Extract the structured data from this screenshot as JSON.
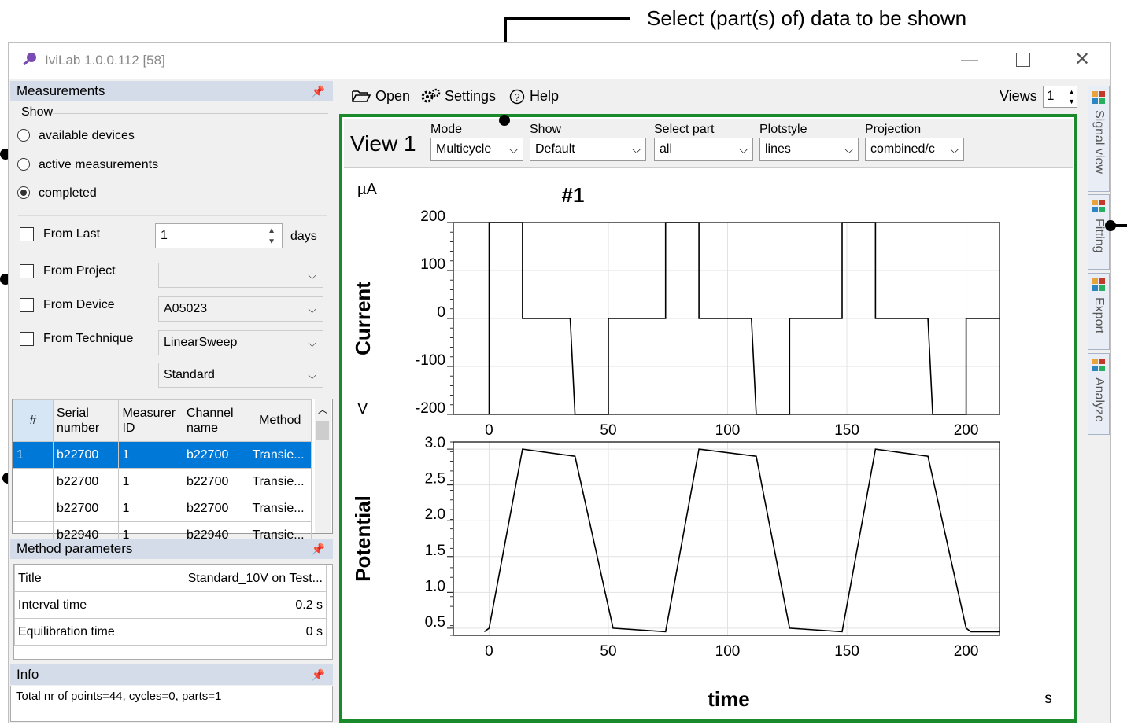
{
  "annotation": {
    "top_text": "Select (part(s) of)  data to be shown"
  },
  "window": {
    "title": "IviLab 1.0.0.112 [58]"
  },
  "measurements": {
    "header": "Measurements",
    "show_label": "Show",
    "radios": [
      {
        "label": "available devices",
        "checked": false
      },
      {
        "label": "active measurements",
        "checked": false
      },
      {
        "label": "completed",
        "checked": true
      }
    ],
    "filters": {
      "from_last_label": "From Last",
      "from_last_value": "1",
      "days_label": "days",
      "from_project_label": "From Project",
      "from_project_value": "",
      "from_device_label": "From Device",
      "from_device_value": "A05023",
      "from_technique_label": "From Technique",
      "from_technique_value": "LinearSweep",
      "technique_variant": "Standard"
    },
    "table": {
      "columns": [
        "#",
        "Serial number",
        "Measurer ID",
        "Channel name",
        "Method"
      ],
      "rows": [
        [
          "1",
          "b22700",
          "1",
          "b22700",
          "Transie..."
        ],
        [
          "",
          "b22700",
          "1",
          "b22700",
          "Transie..."
        ],
        [
          "",
          "b22700",
          "1",
          "b22700",
          "Transie..."
        ],
        [
          "",
          "b22940",
          "1",
          "b22940",
          "Transie..."
        ]
      ]
    }
  },
  "method_parameters": {
    "header": "Method parameters",
    "rows": [
      [
        "Title",
        "Standard_10V on Test..."
      ],
      [
        "Interval time",
        "0.2 s"
      ],
      [
        "Equilibration time",
        "0 s"
      ]
    ]
  },
  "info": {
    "header": "Info",
    "text": "Total nr of points=44, cycles=0, parts=1"
  },
  "toolbar": {
    "open": "Open",
    "settings": "Settings",
    "help": "Help",
    "views_label": "Views",
    "views_value": "1"
  },
  "view": {
    "title": "View 1",
    "mode_label": "Mode",
    "mode_value": "Multicycle",
    "show_label": "Show",
    "show_value": "Default",
    "select_part_label": "Select part",
    "select_part_value": "all",
    "plotstyle_label": "Plotstyle",
    "plotstyle_value": "lines",
    "projection_label": "Projection",
    "projection_value": "combined/c"
  },
  "side_tabs": [
    "Signal view",
    "Fitting",
    "Export",
    "Analyze"
  ],
  "chart_data": [
    {
      "type": "line",
      "title": "#1",
      "ylabel": "Current",
      "yunit": "µA",
      "ylim": [
        -200,
        200
      ],
      "yticks": [
        "200",
        "100",
        "0",
        "-100",
        "-200"
      ],
      "xlim": [
        -15,
        214
      ],
      "xticks": [
        "0",
        "50",
        "100",
        "150",
        "200"
      ],
      "grid": true,
      "series": [
        {
          "x": [
            0,
            0,
            14,
            14,
            34,
            36,
            50,
            50,
            52,
            74,
            74,
            88,
            88,
            90,
            110,
            112,
            126,
            126,
            128,
            148,
            148,
            162,
            162,
            164,
            184,
            186,
            200,
            200,
            202,
            214
          ],
          "y": [
            -200,
            200,
            200,
            0,
            0,
            -200,
            -200,
            0,
            0,
            0,
            200,
            200,
            0,
            0,
            0,
            -200,
            -200,
            0,
            0,
            0,
            200,
            200,
            0,
            0,
            0,
            -200,
            -200,
            0,
            0,
            0
          ]
        }
      ]
    },
    {
      "type": "line",
      "ylabel": "Potential",
      "yunit": "V",
      "xlabel": "time",
      "xunit": "s",
      "ylim": [
        0.4,
        3.1
      ],
      "yticks": [
        "3.0",
        "2.5",
        "2.0",
        "1.5",
        "1.0",
        "0.5"
      ],
      "xlim": [
        -15,
        214
      ],
      "xticks": [
        "0",
        "50",
        "100",
        "150",
        "200"
      ],
      "grid": true,
      "series": [
        {
          "x": [
            -2,
            0,
            14,
            36,
            52,
            74,
            88,
            112,
            126,
            148,
            162,
            184,
            200,
            202,
            214
          ],
          "y": [
            0.45,
            0.5,
            3.0,
            2.9,
            0.5,
            0.45,
            3.0,
            2.9,
            0.5,
            0.45,
            3.0,
            2.9,
            0.5,
            0.45,
            0.45
          ]
        }
      ]
    }
  ]
}
